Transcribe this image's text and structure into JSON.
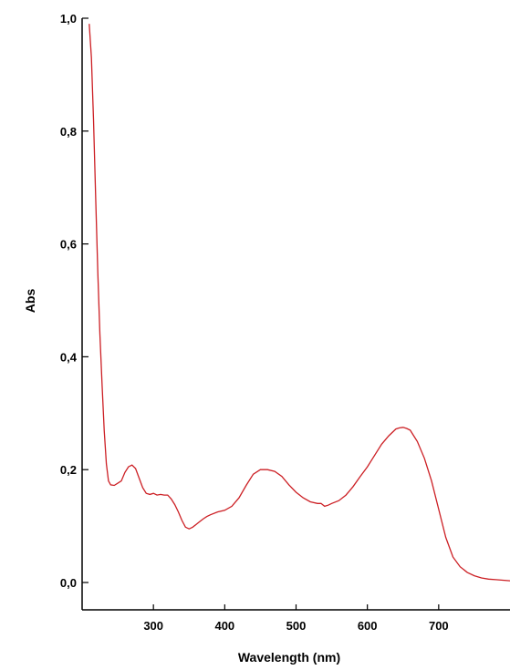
{
  "chart_data": {
    "type": "line",
    "title": "",
    "xlabel": "Wavelength (nm)",
    "ylabel": "Abs",
    "xlim": [
      200,
      800
    ],
    "ylim": [
      0,
      1.0
    ],
    "x_ticks": [
      300,
      400,
      500,
      600,
      700
    ],
    "x_tick_labels": [
      "300",
      "400",
      "500",
      "600",
      "700"
    ],
    "y_ticks": [
      0,
      0.2,
      0.4,
      0.6,
      0.8,
      1.0
    ],
    "y_tick_labels": [
      "0,0",
      "0,2",
      "0,4",
      "0,6",
      "0,8",
      "1,0"
    ],
    "grid": false,
    "legend": "none",
    "line_color": "#cc1f24",
    "series": [
      {
        "x": [
          210,
          213,
          216,
          219,
          222,
          225,
          228,
          231,
          234,
          237,
          240,
          245,
          250,
          255,
          260,
          265,
          270,
          275,
          280,
          285,
          290,
          295,
          300,
          305,
          310,
          315,
          320,
          325,
          330,
          335,
          340,
          345,
          350,
          355,
          360,
          365,
          370,
          375,
          380,
          390,
          400,
          410,
          420,
          430,
          440,
          450,
          460,
          470,
          480,
          490,
          500,
          510,
          520,
          530,
          535,
          540,
          545,
          550,
          560,
          570,
          580,
          590,
          600,
          610,
          620,
          630,
          640,
          645,
          650,
          655,
          660,
          665,
          670,
          680,
          690,
          700,
          710,
          720,
          730,
          740,
          750,
          760,
          770,
          780,
          790,
          800
        ],
        "y": [
          0.99,
          0.93,
          0.82,
          0.68,
          0.55,
          0.44,
          0.35,
          0.27,
          0.21,
          0.18,
          0.173,
          0.172,
          0.176,
          0.18,
          0.195,
          0.205,
          0.208,
          0.202,
          0.185,
          0.168,
          0.158,
          0.156,
          0.158,
          0.155,
          0.156,
          0.155,
          0.155,
          0.148,
          0.138,
          0.125,
          0.11,
          0.098,
          0.095,
          0.098,
          0.103,
          0.108,
          0.113,
          0.117,
          0.12,
          0.125,
          0.128,
          0.135,
          0.15,
          0.172,
          0.192,
          0.2,
          0.2,
          0.197,
          0.188,
          0.173,
          0.16,
          0.15,
          0.143,
          0.14,
          0.14,
          0.135,
          0.137,
          0.14,
          0.145,
          0.155,
          0.17,
          0.188,
          0.205,
          0.225,
          0.245,
          0.26,
          0.272,
          0.274,
          0.275,
          0.273,
          0.27,
          0.26,
          0.25,
          0.22,
          0.18,
          0.13,
          0.08,
          0.045,
          0.028,
          0.018,
          0.012,
          0.008,
          0.006,
          0.005,
          0.004,
          0.003
        ]
      }
    ]
  }
}
